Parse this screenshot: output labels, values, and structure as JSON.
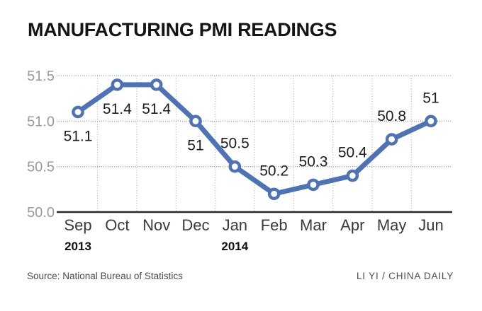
{
  "title": "MANUFACTURING PMI READINGS",
  "footer": {
    "source": "Source: National Bureau of Statistics",
    "credit": "LI YI / CHINA DAILY"
  },
  "chart_data": {
    "type": "line",
    "title": "MANUFACTURING PMI READINGS",
    "categories": [
      "Sep",
      "Oct",
      "Nov",
      "Dec",
      "Jan",
      "Feb",
      "Mar",
      "Apr",
      "May",
      "Jun"
    ],
    "values": [
      51.1,
      51.4,
      51.4,
      51,
      50.5,
      50.2,
      50.3,
      50.4,
      50.8,
      51
    ],
    "data_labels": [
      "51.1",
      "51.4",
      "51.4",
      "51",
      "50.5",
      "50.2",
      "50.3",
      "50.4",
      "50.8",
      "51"
    ],
    "year_labels": [
      {
        "text": "2013",
        "category_index": 0
      },
      {
        "text": "2014",
        "category_index": 4
      }
    ],
    "ylim": [
      50.0,
      51.5
    ],
    "yticks": [
      51.5,
      51.0,
      50.5,
      50.0
    ],
    "ytick_labels": [
      "51.5",
      "51.0",
      "50.5",
      "50.0"
    ],
    "xlabel": "",
    "ylabel": "",
    "legend": "none",
    "grid": "dotted horizontal gridlines and dotted vertical separators between months; solid bottom axis",
    "colors": {
      "line": "#4d72b6",
      "marker_fill": "#ffffff",
      "marker_stroke": "#4d72b6",
      "grid_h": "#8d8d8d",
      "grid_v": "#a3a3a3",
      "axis": "#2a2a2a",
      "ytick_text": "#9a9a9a",
      "month_text": "#3a3a3a",
      "year_text": "#111111",
      "data_label_text": "#1d1d1d"
    }
  }
}
